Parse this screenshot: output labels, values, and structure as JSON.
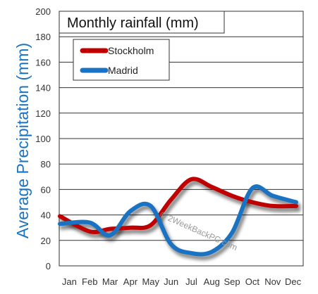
{
  "chart_data": {
    "type": "line",
    "title": "Monthly rainfall (mm)",
    "ylabel": "Average Precipitation (mm)",
    "xlabel": "",
    "categories": [
      "Jan",
      "Feb",
      "Mar",
      "Apr",
      "May",
      "Jun",
      "Jul",
      "Aug",
      "Sep",
      "Oct",
      "Nov",
      "Dec"
    ],
    "ylim": [
      0,
      200
    ],
    "yticks": [
      0,
      20,
      40,
      60,
      80,
      100,
      120,
      140,
      160,
      180,
      200
    ],
    "grid": true,
    "legend_position": "top-left",
    "series": [
      {
        "name": "Stockholm",
        "color": "#c00000",
        "values": [
          39,
          27,
          29,
          30,
          32,
          52,
          68,
          62,
          55,
          50,
          47,
          47
        ]
      },
      {
        "name": "Madrid",
        "color": "#1a73c2",
        "values": [
          33,
          34,
          24,
          43,
          47,
          17,
          10,
          11,
          26,
          61,
          55,
          50
        ]
      }
    ],
    "watermark": "© 2WeekBackPC.com"
  }
}
